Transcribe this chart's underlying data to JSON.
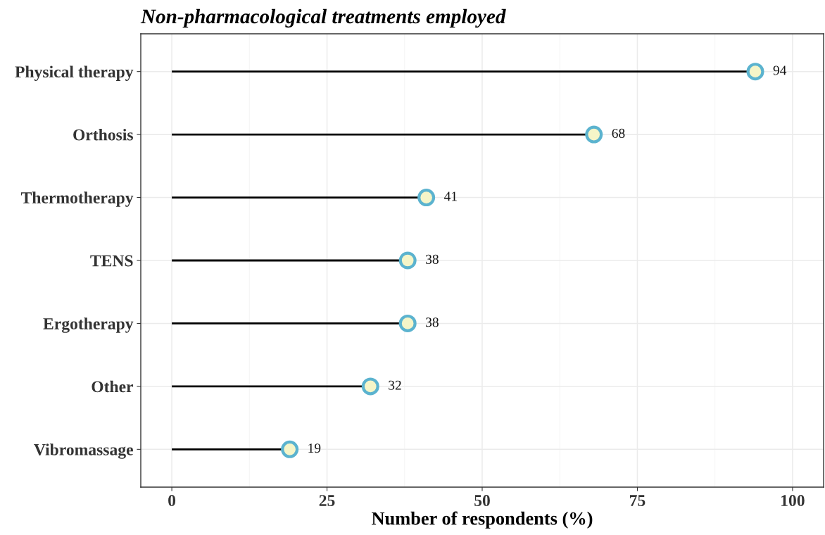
{
  "chart_data": {
    "type": "lollipop",
    "orientation": "horizontal",
    "title": "Non-pharmacological treatments employed",
    "xlabel": "Number of respondents (%)",
    "categories": [
      "Physical therapy",
      "Orthosis",
      "Thermotherapy",
      "TENS",
      "Ergotherapy",
      "Other",
      "Vibromassage"
    ],
    "values": [
      94,
      68,
      41,
      38,
      38,
      32,
      19
    ],
    "color": "#5bb3cf",
    "xlim": [
      -5,
      105
    ],
    "xticks": [
      0,
      25,
      50,
      75,
      100
    ],
    "grid": true,
    "data_labels": true,
    "marker": "circle"
  }
}
